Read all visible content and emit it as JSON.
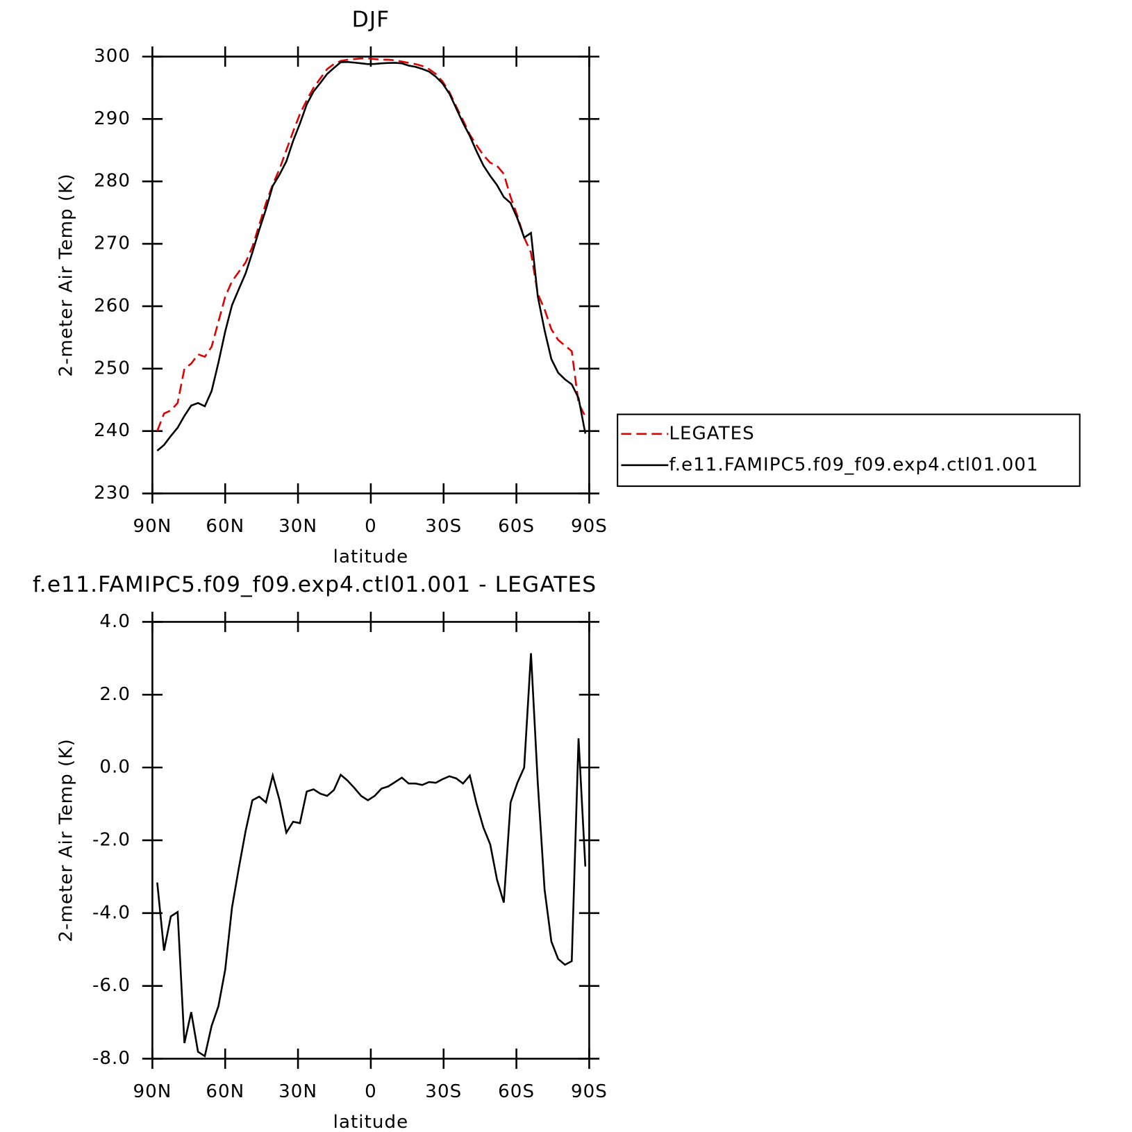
{
  "chart_data": [
    {
      "type": "line",
      "title": "DJF",
      "xlabel": "latitude",
      "ylabel": "2-meter Air Temp (K)",
      "x": [
        88,
        85.2,
        82.4,
        79.6,
        76.8,
        74,
        71.2,
        68.4,
        65.6,
        62.8,
        60,
        57.2,
        54.4,
        51.6,
        48.8,
        46,
        43.2,
        40.4,
        37.6,
        34.8,
        32,
        29.2,
        26.4,
        23.6,
        20.8,
        18,
        15.2,
        12.4,
        9.6,
        6.8,
        4,
        1.2,
        -1.6,
        -4.4,
        -7.2,
        -10,
        -12.8,
        -15.6,
        -18.4,
        -21.2,
        -24,
        -26.8,
        -29.6,
        -32.4,
        -35.2,
        -38,
        -40.8,
        -43.6,
        -46.4,
        -49.2,
        -52,
        -54.8,
        -57.6,
        -60.4,
        -63.2,
        -66,
        -68.8,
        -71.6,
        -74.4,
        -77.2,
        -80,
        -82.8,
        -85.6,
        -88.4
      ],
      "xlim": [
        90,
        -90
      ],
      "xticks": [
        {
          "value": 90,
          "label": "90N"
        },
        {
          "value": 60,
          "label": "60N"
        },
        {
          "value": 30,
          "label": "30N"
        },
        0,
        {
          "value": -30,
          "label": "30S"
        },
        {
          "value": -60,
          "label": "60S"
        },
        {
          "value": -90,
          "label": "90S"
        }
      ],
      "ylim": [
        230,
        300
      ],
      "yticks": [
        230,
        240,
        250,
        260,
        270,
        280,
        290,
        300
      ],
      "series": [
        {
          "name": "LEGATES",
          "color": "#e00000",
          "dashed": true,
          "values": [
            240,
            242.8,
            243.3,
            244.5,
            250,
            250.8,
            252.3,
            251.9,
            253.5,
            257.5,
            261.5,
            264,
            265.5,
            267,
            269.5,
            273,
            276.5,
            279.5,
            282,
            285,
            288,
            290.8,
            293,
            295,
            296.5,
            298,
            298.8,
            299.3,
            299.5,
            299.6,
            299.7,
            299.7,
            299.6,
            299.5,
            299.5,
            299.4,
            299.2,
            299,
            298.8,
            298.5,
            298,
            297.2,
            296,
            294.3,
            292,
            289.8,
            287.5,
            285.8,
            284.2,
            283,
            282.5,
            281.2,
            277.5,
            274.5,
            271,
            268.6,
            262,
            259.5,
            256.3,
            254.6,
            253.7,
            252.8,
            244.5,
            242.3
          ]
        },
        {
          "name": "f.e11.FAMIPC5.f09_f09.exp4.ctl01.001",
          "color": "#000000",
          "dashed": false,
          "values": [
            236.84,
            237.77,
            239.21,
            240.53,
            242.43,
            244.08,
            244.49,
            243.97,
            246.4,
            250.94,
            255.94,
            260.15,
            262.73,
            265.25,
            268.6,
            272.2,
            275.54,
            279.28,
            281.1,
            283.21,
            286.51,
            289.27,
            292.34,
            294.4,
            295.78,
            297.22,
            298.18,
            299.1,
            299.14,
            299.04,
            298.92,
            298.8,
            298.82,
            298.92,
            298.98,
            299,
            298.92,
            298.56,
            298.36,
            298.02,
            297.6,
            296.78,
            295.68,
            294.06,
            291.7,
            289.36,
            287.28,
            284.8,
            282.55,
            280.89,
            279.42,
            277.49,
            276.54,
            274.08,
            271,
            271.74,
            261.58,
            256.15,
            251.52,
            249.34,
            248.28,
            247.48,
            245.3,
            239.58
          ]
        }
      ]
    },
    {
      "type": "line",
      "title": "f.e11.FAMIPC5.f09_f09.exp4.ctl01.001 - LEGATES",
      "xlabel": "latitude",
      "ylabel": "2-meter Air Temp (K)",
      "x": [
        88,
        85.2,
        82.4,
        79.6,
        76.8,
        74,
        71.2,
        68.4,
        65.6,
        62.8,
        60,
        57.2,
        54.4,
        51.6,
        48.8,
        46,
        43.2,
        40.4,
        37.6,
        34.8,
        32,
        29.2,
        26.4,
        23.6,
        20.8,
        18,
        15.2,
        12.4,
        9.6,
        6.8,
        4,
        1.2,
        -1.6,
        -4.4,
        -7.2,
        -10,
        -12.8,
        -15.6,
        -18.4,
        -21.2,
        -24,
        -26.8,
        -29.6,
        -32.4,
        -35.2,
        -38,
        -40.8,
        -43.6,
        -46.4,
        -49.2,
        -52,
        -54.8,
        -57.6,
        -60.4,
        -63.2,
        -66,
        -68.8,
        -71.6,
        -74.4,
        -77.2,
        -80,
        -82.8,
        -85.6,
        -88.4
      ],
      "xlim": [
        90,
        -90
      ],
      "xticks": [
        {
          "value": 90,
          "label": "90N"
        },
        {
          "value": 60,
          "label": "60N"
        },
        {
          "value": 30,
          "label": "30N"
        },
        0,
        {
          "value": -30,
          "label": "30S"
        },
        {
          "value": -60,
          "label": "60S"
        },
        {
          "value": -90,
          "label": "90S"
        }
      ],
      "ylim": [
        -8,
        4
      ],
      "yticks": [
        {
          "value": -8,
          "label": "-8.0"
        },
        {
          "value": -6,
          "label": "-6.0"
        },
        {
          "value": -4,
          "label": "-4.0"
        },
        {
          "value": -2,
          "label": "-2.0"
        },
        {
          "value": 0,
          "label": "0.0"
        },
        {
          "value": 2,
          "label": "2.0"
        },
        {
          "value": 4,
          "label": "4.0"
        }
      ],
      "color": "#000000",
      "values": [
        -3.16,
        -5.03,
        -4.09,
        -3.97,
        -7.57,
        -6.72,
        -7.81,
        -7.93,
        -7.1,
        -6.56,
        -5.56,
        -3.85,
        -2.77,
        -1.75,
        -0.9,
        -0.8,
        -0.96,
        -0.22,
        -0.9,
        -1.79,
        -1.49,
        -1.53,
        -0.66,
        -0.6,
        -0.72,
        -0.78,
        -0.62,
        -0.2,
        -0.36,
        -0.56,
        -0.78,
        -0.9,
        -0.78,
        -0.58,
        -0.52,
        -0.4,
        -0.28,
        -0.44,
        -0.44,
        -0.48,
        -0.4,
        -0.42,
        -0.32,
        -0.24,
        -0.3,
        -0.44,
        -0.22,
        -1.0,
        -1.65,
        -2.11,
        -3.08,
        -3.71,
        -0.96,
        -0.42,
        0,
        3.14,
        -0.42,
        -3.35,
        -4.78,
        -5.26,
        -5.42,
        -5.32,
        0.8,
        -2.72
      ]
    }
  ]
}
